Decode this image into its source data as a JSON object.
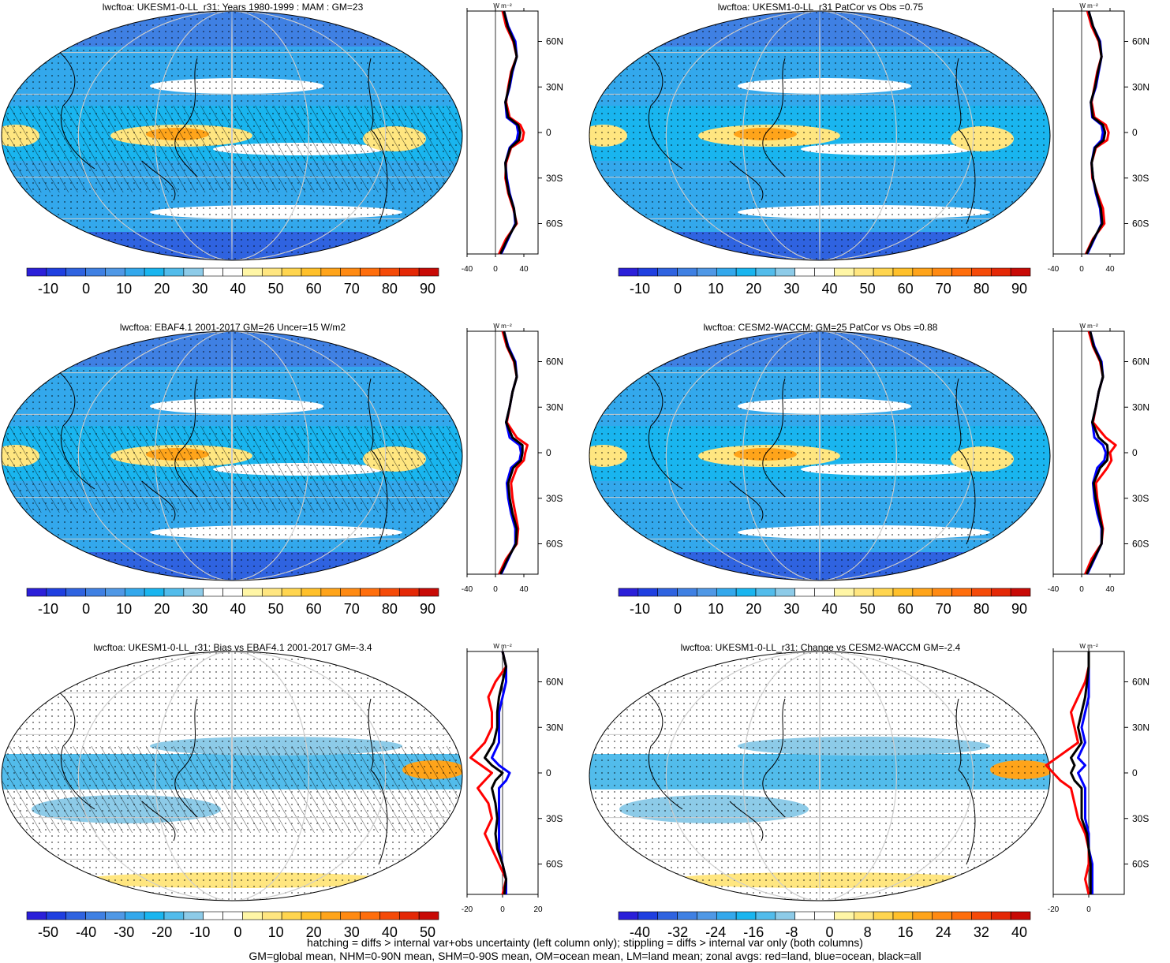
{
  "panels": [
    {
      "id": "ukesm-clim",
      "title": "lwcftoa: UKESM1-0-LL_r31: Years 1980-1999 : MAM : GM=23",
      "colorbar": {
        "labels": [
          "-10",
          "0",
          "10",
          "20",
          "30",
          "40",
          "50",
          "60",
          "70",
          "80",
          "90"
        ]
      },
      "zonal": {
        "x_labels": [
          "-40",
          "0",
          "40"
        ],
        "y_labels": [
          "60N",
          "30N",
          "0",
          "30S",
          "60S"
        ],
        "units": "W m⁻²"
      }
    },
    {
      "id": "patcor",
      "title": "lwcftoa: UKESM1-0-LL_r31 PatCor vs Obs =0.75",
      "colorbar": {
        "labels": [
          "-10",
          "0",
          "10",
          "20",
          "30",
          "40",
          "50",
          "60",
          "70",
          "80",
          "90"
        ]
      },
      "zonal": {
        "x_labels": [
          "-40",
          "0",
          "40"
        ],
        "y_labels": [
          "60N",
          "30N",
          "0",
          "30S",
          "60S"
        ],
        "units": "W m⁻²"
      }
    },
    {
      "id": "ebaf",
      "title": "lwcftoa: EBAF4.1 2001-2017 GM=26 Uncer=15 W/m2",
      "colorbar": {
        "labels": [
          "-10",
          "0",
          "10",
          "20",
          "30",
          "40",
          "50",
          "60",
          "70",
          "80",
          "90"
        ]
      },
      "zonal": {
        "x_labels": [
          "-40",
          "0",
          "40"
        ],
        "y_labels": [
          "60N",
          "30N",
          "0",
          "30S",
          "60S"
        ],
        "units": "W m⁻²"
      }
    },
    {
      "id": "cesm",
      "title": "lwcftoa: CESM2-WACCM: GM=25 PatCor vs Obs =0.88",
      "colorbar": {
        "labels": [
          "-10",
          "0",
          "10",
          "20",
          "30",
          "40",
          "50",
          "60",
          "70",
          "80",
          "90"
        ]
      },
      "zonal": {
        "x_labels": [
          "-40",
          "0",
          "40"
        ],
        "y_labels": [
          "60N",
          "30N",
          "0",
          "30S",
          "60S"
        ],
        "units": "W m⁻²"
      }
    },
    {
      "id": "bias",
      "title": "lwcftoa: UKESM1-0-LL_r31: Bias vs EBAF4.1 2001-2017 GM=-3.4",
      "colorbar": {
        "labels": [
          "-50",
          "-40",
          "-30",
          "-20",
          "-10",
          "0",
          "10",
          "20",
          "30",
          "40",
          "50"
        ]
      },
      "zonal": {
        "x_labels": [
          "-20",
          "0",
          "20"
        ],
        "y_labels": [
          "60N",
          "30N",
          "0",
          "30S",
          "60S"
        ],
        "units": "W m⁻²"
      }
    },
    {
      "id": "change",
      "title": "lwcftoa: UKESM1-0-LL_r31: Change vs CESM2-WACCM GM=-2.4",
      "colorbar": {
        "labels": [
          "-40",
          "-32",
          "-24",
          "-16",
          "-8",
          "0",
          "8",
          "16",
          "24",
          "32",
          "40"
        ]
      },
      "zonal": {
        "x_labels": [
          "-20",
          "0"
        ],
        "y_labels": [
          "60N",
          "30N",
          "0",
          "30S",
          "60S"
        ],
        "units": "W m⁻²"
      }
    }
  ],
  "colors": {
    "clim_scale": [
      "#2b1fd9",
      "#1f3fe0",
      "#2f63e0",
      "#3f80e3",
      "#4f98e6",
      "#33a8ec",
      "#19b5ef",
      "#52bceb",
      "#8dcbe8",
      "#ffffff",
      "#ffffff",
      "#fff6a6",
      "#ffe680",
      "#ffd54f",
      "#ffc02a",
      "#ffa41a",
      "#ff8a12",
      "#ff6e0c",
      "#f54a08",
      "#e42806",
      "#c80a06"
    ],
    "diff_scale": [
      "#2b1fd9",
      "#1f3fe0",
      "#2f63e0",
      "#3f80e3",
      "#4f98e6",
      "#33a8ec",
      "#19b5ef",
      "#52bceb",
      "#8dcbe8",
      "#ffffff",
      "#ffffff",
      "#fff6a6",
      "#ffe680",
      "#ffd54f",
      "#ffc02a",
      "#ffa41a",
      "#ff8a12",
      "#ff6e0c",
      "#f54a08",
      "#e42806",
      "#c80a06"
    ],
    "land": "#ff0000",
    "ocean": "#0000ff",
    "all": "#000000"
  },
  "chart_data": [
    {
      "type": "heatmap",
      "title": "lwcftoa: UKESM1-0-LL_r31: Years 1980-1999 : MAM : GM=23",
      "colorbar_range": [
        -10,
        90
      ],
      "zonal_mean": {
        "lat": [
          80,
          70,
          60,
          50,
          40,
          30,
          20,
          10,
          5,
          0,
          -5,
          -10,
          -20,
          -30,
          -40,
          -50,
          -60,
          -70,
          -80
        ],
        "land": [
          10,
          15,
          25,
          30,
          22,
          18,
          15,
          20,
          35,
          40,
          38,
          22,
          15,
          14,
          18,
          25,
          30,
          15,
          5
        ],
        "ocean": [
          12,
          18,
          28,
          30,
          24,
          20,
          14,
          16,
          30,
          32,
          30,
          20,
          14,
          16,
          20,
          26,
          28,
          18,
          8
        ],
        "all": [
          12,
          17,
          26,
          30,
          23,
          19,
          14,
          18,
          32,
          35,
          33,
          21,
          14,
          15,
          19,
          26,
          29,
          17,
          7
        ]
      }
    },
    {
      "type": "heatmap",
      "title": "lwcftoa: UKESM1-0-LL_r31 PatCor vs Obs =0.75",
      "colorbar_range": [
        -10,
        90
      ],
      "zonal_mean": {
        "lat": [
          80,
          70,
          60,
          50,
          40,
          30,
          20,
          10,
          5,
          0,
          -5,
          -10,
          -20,
          -30,
          -40,
          -50,
          -60,
          -70,
          -80
        ],
        "land": [
          8,
          14,
          24,
          28,
          22,
          18,
          14,
          18,
          34,
          38,
          36,
          20,
          14,
          15,
          22,
          30,
          32,
          16,
          6
        ],
        "ocean": [
          10,
          16,
          26,
          28,
          24,
          20,
          13,
          15,
          28,
          30,
          28,
          18,
          14,
          16,
          20,
          26,
          28,
          18,
          8
        ],
        "all": [
          10,
          16,
          25,
          28,
          23,
          19,
          13,
          16,
          30,
          33,
          31,
          19,
          14,
          16,
          21,
          27,
          29,
          17,
          7
        ]
      }
    },
    {
      "type": "heatmap",
      "title": "lwcftoa: EBAF4.1 2001-2017 GM=26 Uncer=15 W/m2",
      "colorbar_range": [
        -10,
        90
      ],
      "zonal_mean": {
        "lat": [
          80,
          70,
          60,
          50,
          40,
          30,
          20,
          10,
          5,
          0,
          -5,
          -10,
          -20,
          -30,
          -40,
          -50,
          -60,
          -70,
          -80
        ],
        "land": [
          10,
          16,
          26,
          30,
          24,
          20,
          16,
          30,
          45,
          42,
          40,
          30,
          22,
          24,
          28,
          32,
          30,
          15,
          5
        ],
        "ocean": [
          12,
          18,
          28,
          30,
          24,
          20,
          15,
          20,
          34,
          36,
          34,
          22,
          16,
          18,
          22,
          28,
          28,
          18,
          8
        ],
        "all": [
          12,
          17,
          27,
          30,
          24,
          20,
          15,
          24,
          38,
          38,
          36,
          25,
          18,
          20,
          24,
          30,
          29,
          17,
          7
        ]
      }
    },
    {
      "type": "heatmap",
      "title": "lwcftoa: CESM2-WACCM: GM=25 PatCor vs Obs =0.88",
      "colorbar_range": [
        -10,
        90
      ],
      "zonal_mean": {
        "lat": [
          80,
          70,
          60,
          50,
          40,
          30,
          20,
          10,
          5,
          0,
          -5,
          -10,
          -20,
          -30,
          -40,
          -50,
          -60,
          -70,
          -80
        ],
        "land": [
          10,
          16,
          26,
          30,
          24,
          20,
          16,
          34,
          48,
          40,
          42,
          36,
          20,
          22,
          26,
          30,
          28,
          14,
          5
        ],
        "ocean": [
          12,
          18,
          28,
          30,
          24,
          20,
          15,
          18,
          30,
          34,
          32,
          22,
          16,
          18,
          22,
          28,
          28,
          18,
          8
        ],
        "all": [
          12,
          17,
          27,
          30,
          24,
          20,
          15,
          24,
          36,
          37,
          36,
          26,
          17,
          20,
          24,
          29,
          28,
          17,
          7
        ]
      }
    },
    {
      "type": "heatmap",
      "title": "lwcftoa: UKESM1-0-LL_r31: Bias vs EBAF4.1 2001-2017 GM=-3.4",
      "colorbar_range": [
        -50,
        50
      ],
      "zonal_mean": {
        "lat": [
          80,
          70,
          60,
          50,
          40,
          30,
          20,
          10,
          5,
          0,
          -5,
          -10,
          -20,
          -30,
          -40,
          -50,
          -60,
          -70,
          -80
        ],
        "land": [
          0,
          2,
          -4,
          -8,
          -6,
          -6,
          -10,
          -18,
          -12,
          -6,
          -10,
          -14,
          -8,
          -6,
          -10,
          -6,
          -2,
          2,
          0
        ],
        "ocean": [
          0,
          2,
          2,
          0,
          -2,
          -2,
          -2,
          -6,
          -2,
          4,
          2,
          -2,
          -2,
          -2,
          -2,
          -2,
          0,
          2,
          2
        ],
        "all": [
          0,
          2,
          0,
          -2,
          -3,
          -3,
          -5,
          -10,
          -6,
          0,
          -4,
          -6,
          -4,
          -3,
          -4,
          -3,
          0,
          2,
          1
        ]
      }
    },
    {
      "type": "heatmap",
      "title": "lwcftoa: UKESM1-0-LL_r31: Change vs CESM2-WACCM GM=-2.4",
      "colorbar_range": [
        -40,
        40
      ],
      "zonal_mean": {
        "lat": [
          80,
          70,
          60,
          50,
          40,
          30,
          20,
          10,
          5,
          0,
          -5,
          -10,
          -20,
          -30,
          -40,
          -50,
          -60,
          -70,
          -80
        ],
        "land": [
          0,
          0,
          -2,
          -6,
          -10,
          -8,
          -6,
          -18,
          -24,
          -20,
          -16,
          -10,
          -8,
          -6,
          -2,
          0,
          0,
          -2,
          0
        ],
        "ocean": [
          0,
          0,
          0,
          0,
          -2,
          -4,
          -2,
          -6,
          -2,
          -6,
          -4,
          -2,
          -2,
          -2,
          0,
          0,
          2,
          2,
          2
        ],
        "all": [
          0,
          0,
          -1,
          -2,
          -4,
          -6,
          -4,
          -10,
          -8,
          -10,
          -8,
          -4,
          -4,
          -4,
          -1,
          0,
          1,
          1,
          1
        ]
      }
    }
  ],
  "footnote": {
    "line1": "hatching = diffs > internal var+obs uncertainty (left column only); stippling = diffs > internal var only (both columns)",
    "line2": "GM=global mean, NHM=0-90N mean, SHM=0-90S mean, OM=ocean mean, LM=land mean; zonal avgs: red=land, blue=ocean, black=all"
  }
}
